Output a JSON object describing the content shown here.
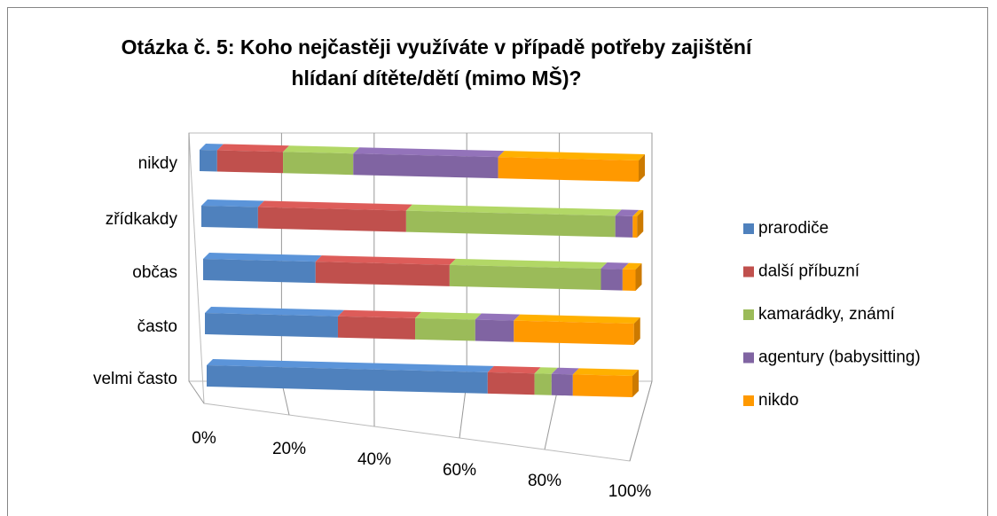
{
  "chart_data": {
    "type": "bar3d_stacked_horizontal",
    "title": "Otázka č. 5: Koho nejčastěji využíváte v případě potřeby zajištění hlídaní dítěte/dětí (mimo MŠ)?",
    "categories": [
      "nikdy",
      "zřídkakdy",
      "občas",
      "často",
      "velmi často"
    ],
    "series": [
      {
        "name": "prarodiče",
        "color": "#4f81bd",
        "values": [
          4,
          13,
          26,
          31,
          66
        ]
      },
      {
        "name": "další příbuzní",
        "color": "#c0504d",
        "values": [
          15,
          34,
          31,
          18,
          11
        ]
      },
      {
        "name": "kamarádky, známí",
        "color": "#9bbb59",
        "values": [
          16,
          48,
          35,
          14,
          4
        ]
      },
      {
        "name": "agentury (babysitting)",
        "color": "#8064a2",
        "values": [
          33,
          4,
          5,
          9,
          5
        ]
      },
      {
        "name": "nikdo",
        "color": "#ff9900",
        "values": [
          32,
          1,
          3,
          28,
          14
        ]
      }
    ],
    "xlim": [
      0,
      100
    ],
    "xticks": [
      {
        "value": 0,
        "label": "0%"
      },
      {
        "value": 20,
        "label": "20%"
      },
      {
        "value": 40,
        "label": "40%"
      },
      {
        "value": 60,
        "label": "60%"
      },
      {
        "value": 80,
        "label": "80%"
      },
      {
        "value": 100,
        "label": "100%"
      }
    ],
    "grid": true,
    "legend": "right"
  }
}
